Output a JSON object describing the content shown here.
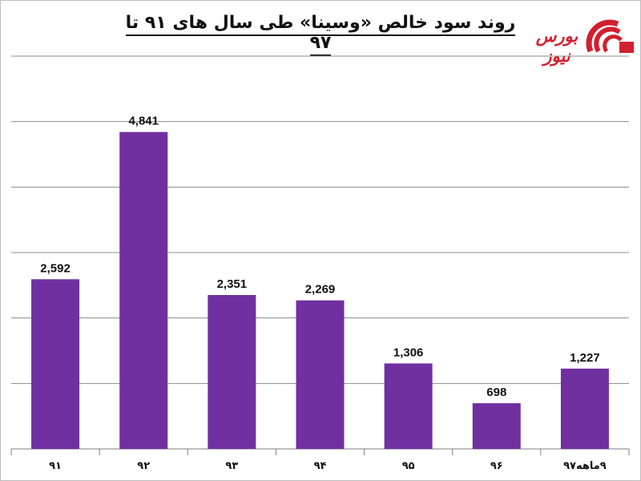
{
  "title": "روند سود خالص «وسینا» طی سال های ۹۱ تا ۹۷",
  "logo": {
    "text": "بورس نیوز"
  },
  "colors": {
    "bar": "#7030a0",
    "grid": "#8c8c8c",
    "brand": "#d1202f"
  },
  "chart_data": {
    "type": "bar",
    "title": "روند سود خالص «وسینا» طی سال های ۹۱ تا ۹۷",
    "categories": [
      "۹۱",
      "۹۲",
      "۹۳",
      "۹۴",
      "۹۵",
      "۹۶",
      "۹ماهه۹۷"
    ],
    "values": [
      2592,
      4841,
      2351,
      2269,
      1306,
      698,
      1227
    ],
    "value_labels": [
      "2,592",
      "4,841",
      "2,351",
      "2,269",
      "1,306",
      "698",
      "1,227"
    ],
    "ylim": [
      0,
      6000
    ],
    "grid": true,
    "legend": "none"
  }
}
